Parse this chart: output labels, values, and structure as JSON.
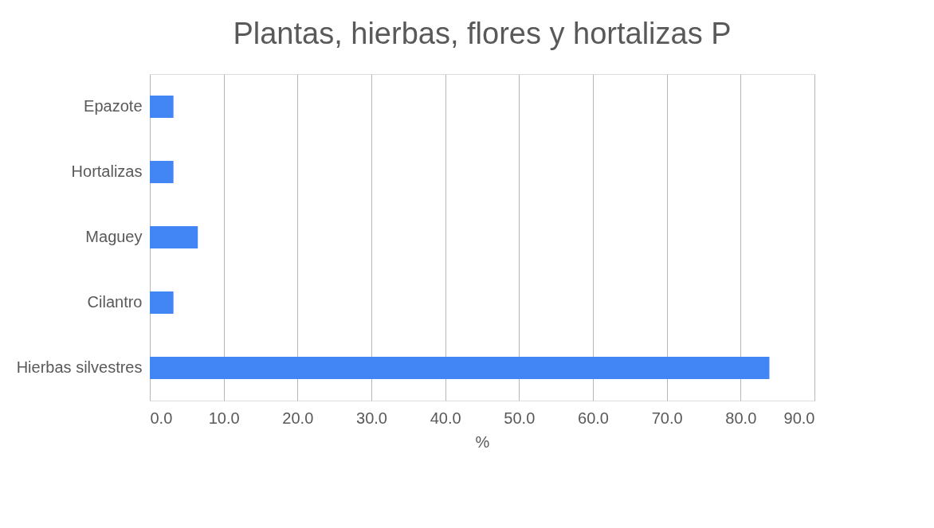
{
  "chart_data": {
    "type": "bar",
    "orientation": "horizontal",
    "title": "Plantas, hierbas, flores y hortalizas P",
    "xlabel": "%",
    "categories": [
      "Epazote",
      "Hortalizas",
      "Maguey",
      "Cilantro",
      "Hierbas silvestres"
    ],
    "values": [
      3.2,
      3.2,
      6.5,
      3.2,
      83.9
    ],
    "color": "#4285f4",
    "xlim": [
      0,
      90
    ],
    "xticks": [
      {
        "value": 0,
        "label": "0.0"
      },
      {
        "value": 10,
        "label": "10.0"
      },
      {
        "value": 20,
        "label": "20.0"
      },
      {
        "value": 30,
        "label": "30.0"
      },
      {
        "value": 40,
        "label": "40.0"
      },
      {
        "value": 50,
        "label": "50.0"
      },
      {
        "value": 60,
        "label": "60.0"
      },
      {
        "value": 70,
        "label": "70.0"
      },
      {
        "value": 80,
        "label": "80.0"
      },
      {
        "value": 90,
        "label": "90.0"
      }
    ],
    "grid": "x"
  }
}
